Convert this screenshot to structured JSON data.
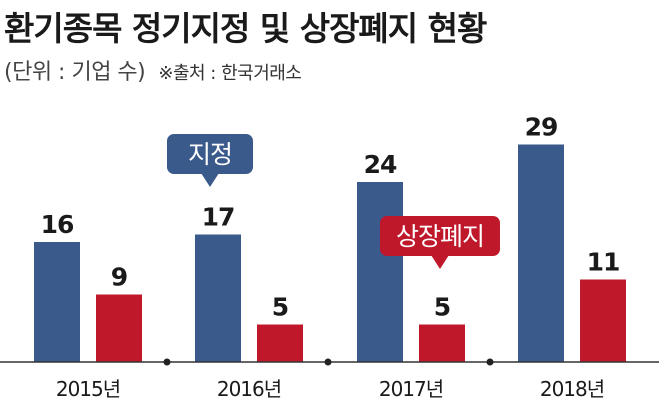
{
  "header": {
    "title": "환기종목 정기지정 및 상장폐지 현황",
    "unit": "(단위 : 기업 수)",
    "source": "※출처 : 한국거래소"
  },
  "colors": {
    "designation": "#3b5a8c",
    "delisting": "#c0182b",
    "text": "#1a1a1a",
    "axis": "#333333"
  },
  "chart_data": {
    "type": "bar",
    "categories": [
      "2015년",
      "2016년",
      "2017년",
      "2018년"
    ],
    "series": [
      {
        "name": "지정",
        "values": [
          16,
          17,
          24,
          29
        ]
      },
      {
        "name": "상장폐지",
        "values": [
          9,
          5,
          5,
          11
        ]
      }
    ],
    "title": "환기종목 정기지정 및 상장폐지 현황",
    "ylim": [
      0,
      29
    ],
    "grid": false,
    "legend": "callouts"
  }
}
